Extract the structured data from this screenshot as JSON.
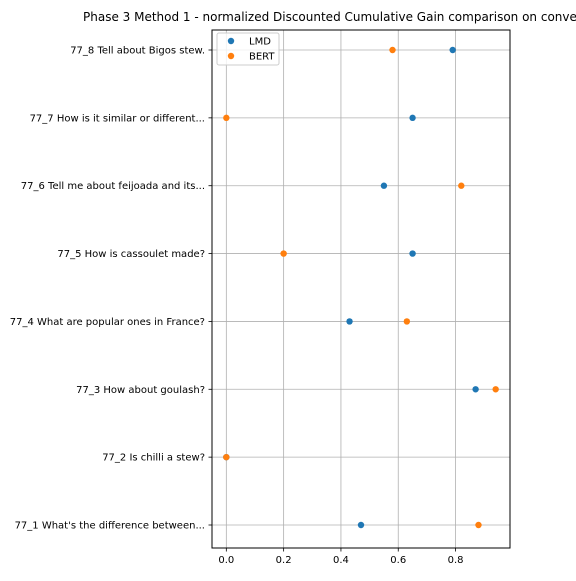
{
  "chart_data": {
    "type": "scatter",
    "title": "Phase 3 Method 1 - normalized Discounted Cumulative Gain comparison on conve",
    "xlabel": "",
    "ylabel": "",
    "xlim": [
      -0.05,
      0.99
    ],
    "xticks": [
      "0.0",
      "0.2",
      "0.4",
      "0.6",
      "0.8"
    ],
    "xtick_values": [
      0.0,
      0.2,
      0.4,
      0.6,
      0.8
    ],
    "grid": true,
    "legend": "top-left",
    "categories": [
      "77_8 Tell about Bigos stew.",
      "77_7 How is it similar or different...",
      "77_6 Tell me about feijoada and its...",
      "77_5 How is cassoulet made?",
      "77_4 What are popular ones in France?",
      "77_3 How about goulash?",
      "77_2 Is chilli a stew?",
      "77_1 What's the difference between..."
    ],
    "series": [
      {
        "name": "LMD",
        "color": "#1f77b4",
        "values": [
          0.79,
          0.65,
          0.55,
          0.65,
          0.43,
          0.87,
          0.0,
          0.47
        ]
      },
      {
        "name": "BERT",
        "color": "#ff7f0e",
        "values": [
          0.58,
          0.0,
          0.82,
          0.2,
          0.63,
          0.94,
          0.0,
          0.88
        ]
      }
    ]
  }
}
